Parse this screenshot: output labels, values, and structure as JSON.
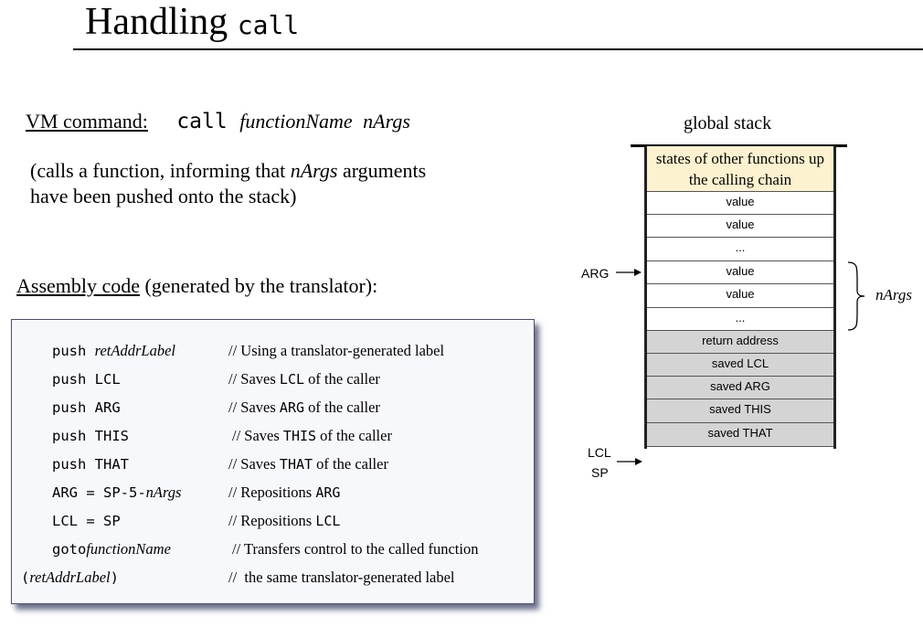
{
  "title": {
    "text": "Handling ",
    "code": "call"
  },
  "vm_command": {
    "label": "VM command:",
    "code": "call",
    "arg1": "functionName",
    "arg2": "nArgs"
  },
  "description": {
    "line1_a": "(calls a function, informing that ",
    "line1_i": "nArgs",
    "line1_b": " arguments",
    "line2": "have been pushed onto the stack)"
  },
  "assembly": {
    "label": "Assembly code",
    "note": " (generated by the translator):"
  },
  "code_lines": [
    {
      "code": [
        {
          "t": "push ",
          "s": "m"
        },
        {
          "t": "retAddrLabel",
          "s": "i"
        }
      ],
      "comment": [
        {
          "t": "// Using a translator-generated label",
          "s": "r"
        }
      ],
      "indent": true
    },
    {
      "code": [
        {
          "t": "push LCL",
          "s": "m"
        }
      ],
      "comment": [
        {
          "t": "// Saves ",
          "s": "r"
        },
        {
          "t": "LCL",
          "s": "m"
        },
        {
          "t": " of the caller",
          "s": "r"
        }
      ],
      "indent": true
    },
    {
      "code": [
        {
          "t": "push ARG",
          "s": "m"
        }
      ],
      "comment": [
        {
          "t": "// Saves ",
          "s": "r"
        },
        {
          "t": "ARG",
          "s": "m"
        },
        {
          "t": " of the caller",
          "s": "r"
        }
      ],
      "indent": true
    },
    {
      "code": [
        {
          "t": "push THIS",
          "s": "m"
        }
      ],
      "comment": [
        {
          "t": "// Saves ",
          "s": "r"
        },
        {
          "t": "THIS",
          "s": "m"
        },
        {
          "t": " of the caller",
          "s": "r"
        }
      ],
      "indent": true
    },
    {
      "code": [
        {
          "t": "push THAT",
          "s": "m"
        }
      ],
      "comment": [
        {
          "t": "// Saves ",
          "s": "r"
        },
        {
          "t": "THAT",
          "s": "m"
        },
        {
          "t": " of the caller",
          "s": "r"
        }
      ],
      "indent": true
    },
    {
      "code": [
        {
          "t": "ARG = SP-5-",
          "s": "m"
        },
        {
          "t": "nArgs",
          "s": "i"
        }
      ],
      "comment": [
        {
          "t": "// Repositions ",
          "s": "r"
        },
        {
          "t": "ARG",
          "s": "m"
        }
      ],
      "indent": true
    },
    {
      "code": [
        {
          "t": "LCL = SP",
          "s": "m"
        }
      ],
      "comment": [
        {
          "t": "// Repositions ",
          "s": "r"
        },
        {
          "t": "LCL",
          "s": "m"
        }
      ],
      "indent": true
    },
    {
      "code": [
        {
          "t": "goto",
          "s": "m"
        },
        {
          "t": "functionName",
          "s": "i"
        }
      ],
      "comment": [
        {
          "t": "// Transfers control to the called function",
          "s": "r"
        }
      ],
      "indent": true
    },
    {
      "code": [
        {
          "t": "(",
          "s": "m"
        },
        {
          "t": "retAddrLabel",
          "s": "i"
        },
        {
          "t": ")",
          "s": "m"
        }
      ],
      "comment": [
        {
          "t": "//  the same translator-generated label",
          "s": "r"
        }
      ],
      "indent": false
    }
  ],
  "stack": {
    "title": "global stack",
    "cells": [
      {
        "text": "states of other functions up the calling chain",
        "kind": "caller-state"
      },
      {
        "text": "value",
        "kind": "value"
      },
      {
        "text": "value",
        "kind": "value"
      },
      {
        "text": "...",
        "kind": "value"
      },
      {
        "text": "value",
        "kind": "arg"
      },
      {
        "text": "value",
        "kind": "arg"
      },
      {
        "text": "...",
        "kind": "arg"
      },
      {
        "text": "return address",
        "kind": "saved"
      },
      {
        "text": "saved LCL",
        "kind": "saved"
      },
      {
        "text": "saved ARG",
        "kind": "saved"
      },
      {
        "text": "saved THIS",
        "kind": "saved"
      },
      {
        "text": "saved THAT",
        "kind": "saved"
      }
    ],
    "arg_pointer": "ARG",
    "lcl_pointer": "LCL",
    "sp_pointer": "SP",
    "brace_label": "nArgs",
    "colors": {
      "caller_state": "#fdf2cf",
      "saved": "#d4d4d4",
      "value": "#ffffff"
    }
  }
}
